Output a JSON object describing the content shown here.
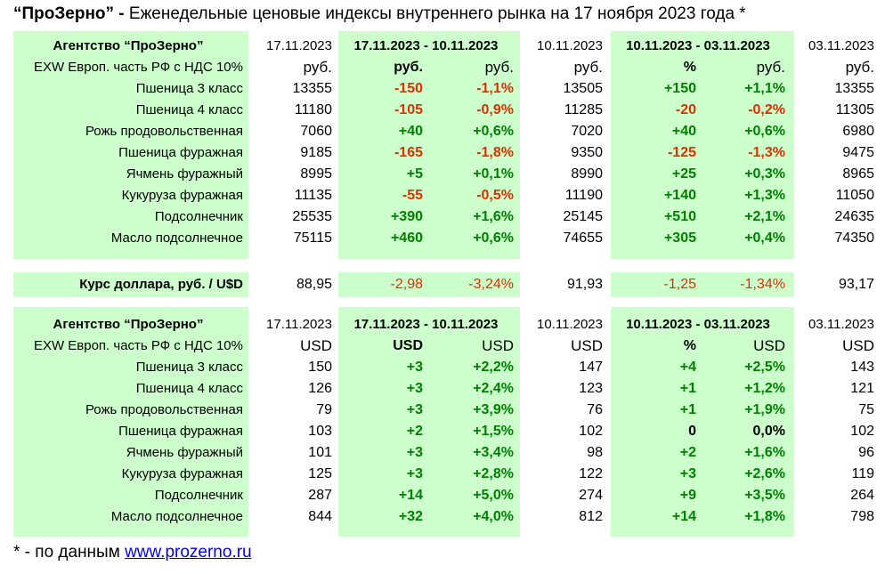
{
  "title_bold": "“ПроЗерно” -",
  "title_rest": " Еженедельные ценовые индексы внутреннего рынка на 17 ноября 2023 года *",
  "colors": {
    "green_fill": "#ccffcc",
    "positive": "#008000",
    "negative": "#e03000"
  },
  "rub_table": {
    "header": [
      "Агентство “ПроЗерно”",
      "17.11.2023",
      "17.11.2023  -  10.11.2023",
      "10.11.2023",
      "10.11.2023  -  03.11.2023",
      "03.11.2023"
    ],
    "units": [
      "EXW Европ. часть РФ с НДС  10%",
      "руб.",
      "руб.",
      "руб.",
      "руб.",
      "%",
      "руб.",
      "руб."
    ],
    "rows": [
      [
        "Пшеница  3 класс",
        "13355",
        "-150",
        "-1,1%",
        "13505",
        "+150",
        "+1,1%",
        "13355"
      ],
      [
        "Пшеница  4 класс",
        "11180",
        "-105",
        "-0,9%",
        "11285",
        "-20",
        "-0,2%",
        "11305"
      ],
      [
        "Рожь продовольственная",
        "7060",
        "+40",
        "+0,6%",
        "7020",
        "+40",
        "+0,6%",
        "6980"
      ],
      [
        "Пшеница  фуражная",
        "9185",
        "-165",
        "-1,8%",
        "9350",
        "-125",
        "-1,3%",
        "9475"
      ],
      [
        "Ячмень фуражный",
        "8995",
        "+5",
        "+0,1%",
        "8990",
        "+25",
        "+0,3%",
        "8965"
      ],
      [
        "Кукуруза фуражная",
        "11135",
        "-55",
        "-0,5%",
        "11190",
        "+140",
        "+1,3%",
        "11050"
      ],
      [
        "Подсолнечник",
        "25535",
        "+390",
        "+1,6%",
        "25145",
        "+510",
        "+2,1%",
        "24635"
      ],
      [
        "Масло подсолнечное",
        "75115",
        "+460",
        "+0,6%",
        "74655",
        "+305",
        "+0,4%",
        "74350"
      ]
    ]
  },
  "rate_row": [
    "Курс доллара,  руб. / U$D",
    "88,95",
    "-2,98",
    "-3,24%",
    "91,93",
    "-1,25",
    "-1,34%",
    "93,17"
  ],
  "usd_table": {
    "header": [
      "Агентство “ПроЗерно”",
      "17.11.2023",
      "17.11.2023  -  10.11.2023",
      "10.11.2023",
      "10.11.2023  -  03.11.2023",
      "03.11.2023"
    ],
    "units": [
      "EXW Европ. часть РФ с НДС  10%",
      "USD",
      "USD",
      "USD",
      "USD",
      "%",
      "USD",
      "USD"
    ],
    "rows": [
      [
        "Пшеница  3 класс",
        "150",
        "+3",
        "+2,2%",
        "147",
        "+4",
        "+2,5%",
        "143"
      ],
      [
        "Пшеница  4 класс",
        "126",
        "+3",
        "+2,4%",
        "123",
        "+1",
        "+1,2%",
        "121"
      ],
      [
        "Рожь продовольственная",
        "79",
        "+3",
        "+3,9%",
        "76",
        "+1",
        "+1,9%",
        "75"
      ],
      [
        "Пшеница  фуражная",
        "103",
        "+2",
        "+1,5%",
        "102",
        "0",
        "0,0%",
        "102"
      ],
      [
        "Ячмень фуражный",
        "101",
        "+3",
        "+3,4%",
        "98",
        "+2",
        "+1,6%",
        "96"
      ],
      [
        "Кукуруза фуражная",
        "125",
        "+3",
        "+2,8%",
        "122",
        "+3",
        "+2,6%",
        "119"
      ],
      [
        "Подсолнечник",
        "287",
        "+14",
        "+5,0%",
        "274",
        "+9",
        "+3,5%",
        "264"
      ],
      [
        "Масло подсолнечное",
        "844",
        "+32",
        "+4,0%",
        "812",
        "+14",
        "+1,8%",
        "798"
      ]
    ]
  },
  "footnote_prefix": "* - по данным ",
  "footnote_link": "www.prozerno.ru"
}
